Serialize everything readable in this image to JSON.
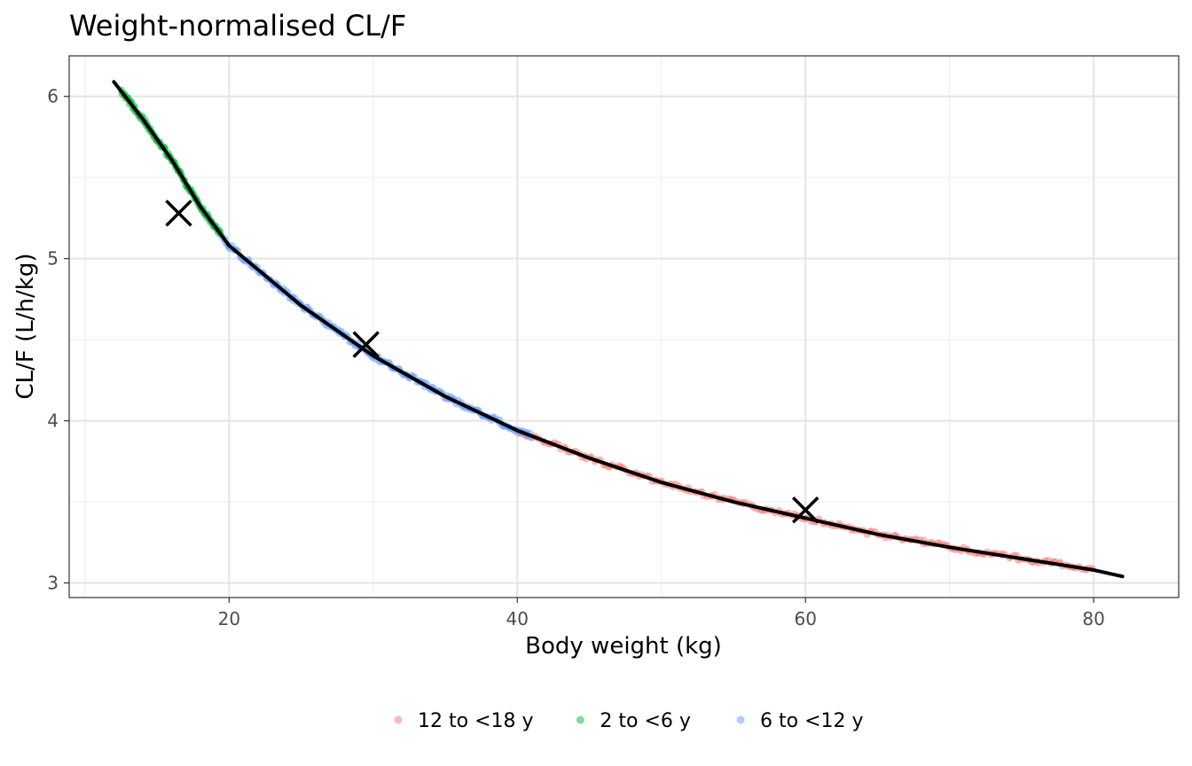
{
  "chart_data": {
    "type": "scatter",
    "title": "Weight-normalised CL/F",
    "xlabel": "Body weight (kg)",
    "ylabel": "CL/F (L/h/kg)",
    "xlim": [
      8.9,
      85.9
    ],
    "ylim": [
      2.91,
      6.25
    ],
    "x_ticks": [
      20,
      40,
      60,
      80
    ],
    "y_ticks": [
      3,
      4,
      5,
      6
    ],
    "grid": true,
    "legend_position": "bottom",
    "series": [
      {
        "name": "12 to <18 y",
        "color": "#F8766D",
        "x_range": [
          40,
          80
        ],
        "n_points": 220
      },
      {
        "name": "2 to <6 y",
        "color": "#00BA38",
        "x_range": [
          12.5,
          19.5
        ],
        "n_points": 120
      },
      {
        "name": "6 to <12 y",
        "color": "#619CFF",
        "x_range": [
          19.5,
          41
        ],
        "n_points": 200
      }
    ],
    "reference_curve": {
      "x": [
        12.0,
        14.0,
        16.0,
        18.0,
        20.0,
        25.0,
        30.0,
        35.0,
        40.0,
        45.0,
        50.0,
        55.0,
        60.0,
        65.0,
        70.0,
        75.0,
        80.0,
        82.0
      ],
      "y": [
        6.09,
        5.86,
        5.61,
        5.32,
        5.08,
        4.71,
        4.4,
        4.15,
        3.94,
        3.77,
        3.62,
        3.5,
        3.4,
        3.3,
        3.22,
        3.15,
        3.08,
        3.04
      ],
      "color": "#000000"
    },
    "markers": {
      "shape": "x",
      "points": [
        {
          "x": 16.5,
          "y": 5.28
        },
        {
          "x": 29.5,
          "y": 4.47
        },
        {
          "x": 60.0,
          "y": 3.45
        }
      ]
    }
  }
}
